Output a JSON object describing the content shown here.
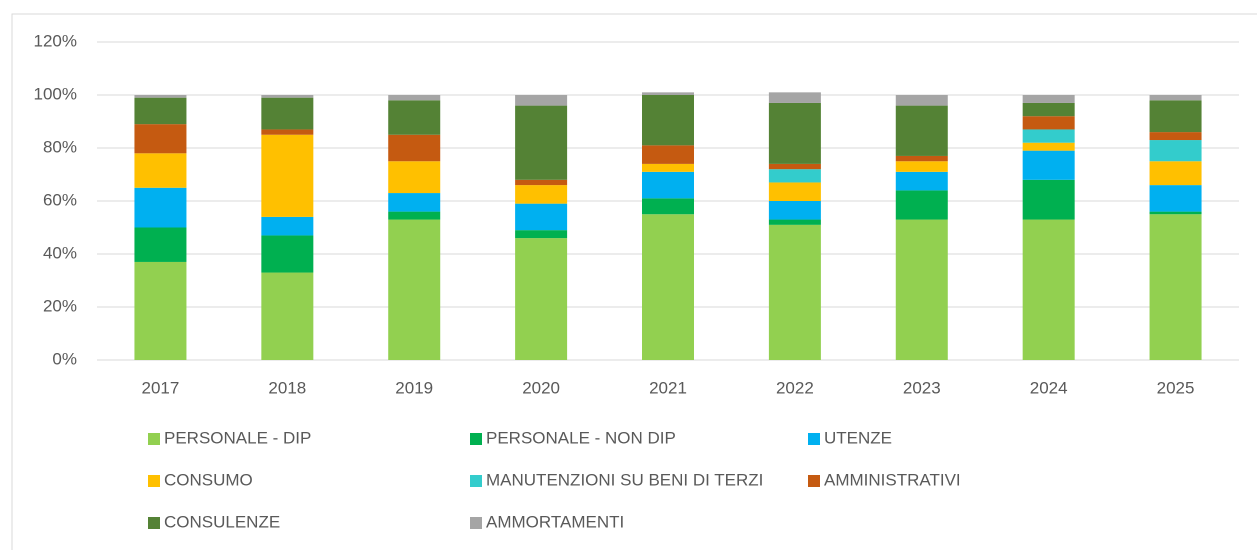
{
  "chart_data": {
    "type": "stacked_bar",
    "categories": [
      "2017",
      "2018",
      "2019",
      "2020",
      "2021",
      "2022",
      "2023",
      "2024",
      "2025"
    ],
    "series": [
      {
        "name": "PERSONALE - DIP",
        "color": "#92d050",
        "values": [
          37,
          33,
          53,
          46,
          55,
          51,
          53,
          53,
          55
        ]
      },
      {
        "name": "PERSONALE - NON DIP",
        "color": "#00b050",
        "values": [
          13,
          14,
          3,
          3,
          6,
          2,
          11,
          15,
          1
        ]
      },
      {
        "name": "UTENZE",
        "color": "#00b0f0",
        "values": [
          15,
          7,
          7,
          10,
          10,
          7,
          7,
          11,
          10
        ]
      },
      {
        "name": "CONSUMO",
        "color": "#ffc000",
        "values": [
          13,
          31,
          12,
          7,
          3,
          7,
          4,
          3,
          9
        ]
      },
      {
        "name": "MANUTENZIONI SU BENI DI TERZI",
        "color": "#33cccc",
        "values": [
          0,
          0,
          0,
          0,
          0,
          5,
          0,
          5,
          8
        ]
      },
      {
        "name": "AMMINISTRATIVI",
        "color": "#c55a11",
        "values": [
          11,
          2,
          10,
          2,
          7,
          2,
          2,
          5,
          3
        ]
      },
      {
        "name": "CONSULENZE",
        "color": "#548235",
        "values": [
          10,
          12,
          13,
          28,
          19,
          23,
          19,
          5,
          12
        ]
      },
      {
        "name": "AMMORTAMENTI",
        "color": "#a5a5a5",
        "values": [
          1,
          1,
          2,
          4,
          1,
          4,
          4,
          3,
          2
        ]
      }
    ],
    "ylim": [
      0,
      120
    ],
    "yticks": [
      {
        "value": 0,
        "label": "0%"
      },
      {
        "value": 20,
        "label": "20%"
      },
      {
        "value": 40,
        "label": "40%"
      },
      {
        "value": 60,
        "label": "60%"
      },
      {
        "value": 80,
        "label": "80%"
      },
      {
        "value": 100,
        "label": "100%"
      },
      {
        "value": 120,
        "label": "120%"
      }
    ],
    "grid": true
  }
}
